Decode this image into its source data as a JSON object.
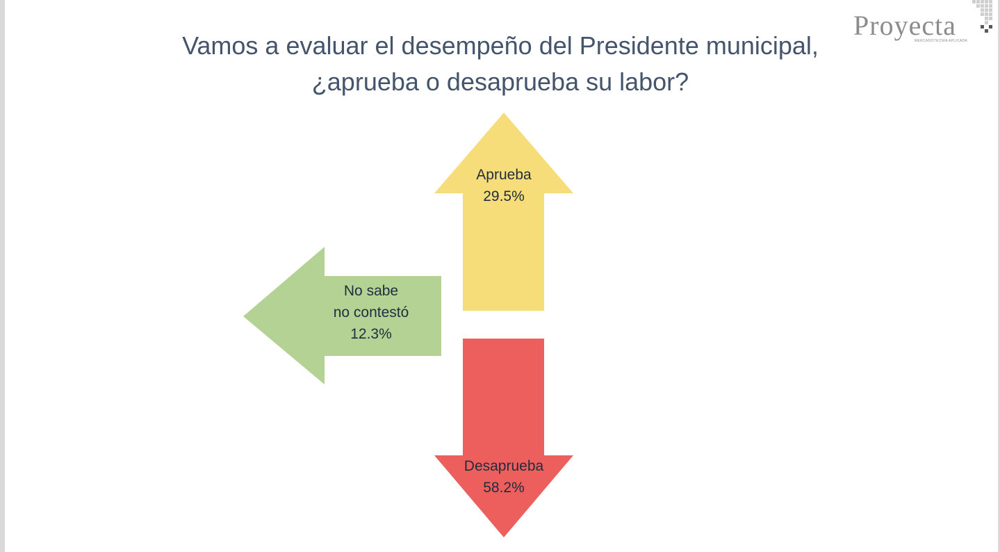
{
  "title": {
    "line1": "Vamos a evaluar el desempeño del Presidente municipal,",
    "line2": "¿aprueba o desaprueba su labor?"
  },
  "logo": {
    "word": "Proyecta",
    "tagline": "MERCADOTECNIA APLICADA"
  },
  "chart_data": {
    "type": "pie",
    "title": "Vamos a evaluar el desempeño del Presidente municipal, ¿aprueba o desaprueba su labor?",
    "unit": "%",
    "slices": [
      {
        "label": "Aprueba",
        "lines": [
          "Aprueba"
        ],
        "value": 29.5,
        "value_label": "29.5%",
        "direction": "up",
        "color": "#f7dc7a"
      },
      {
        "label": "Desaprueba",
        "lines": [
          "Desaprueba"
        ],
        "value": 58.2,
        "value_label": "58.2%",
        "direction": "down",
        "color": "#ec5f5c"
      },
      {
        "label": "No sabe no contestó",
        "lines": [
          "No sabe",
          "no contestó"
        ],
        "value": 12.3,
        "value_label": "12.3%",
        "direction": "left",
        "color": "#b5d295"
      }
    ]
  }
}
